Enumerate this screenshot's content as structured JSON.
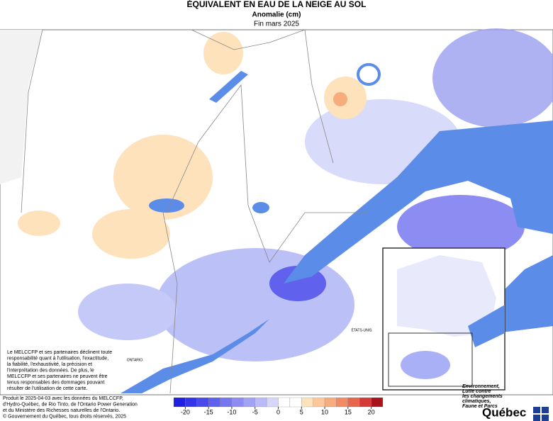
{
  "header": {
    "title": "ÉQUIVALENT EN EAU DE LA NEIGE AU SOL",
    "subtitle": "Anomalie (cm)",
    "period": "Fin mars 2025"
  },
  "map": {
    "labels": [
      "ONTARIO",
      "ÉTATS-UNIS"
    ]
  },
  "disclaimer": [
    "Le MELCCFP et ses partenaires déclinent toute",
    "responsabilité quant à l'utilisation, l'exactitude,",
    "la fiabilité, l'exhaustivité, la précision et",
    "l'interprétation des données. De plus, le",
    "MELCCFP et ses partenaires ne peuvent être",
    "tenus responsables des dommages pouvant",
    "résulter de l'utilisation de cette carte."
  ],
  "footer": [
    "Produit le 2025-04-03 avec les données du MELCCFP,",
    "d'Hydro-Québec, de Rio Tinto, de l'Ontario Power Generation",
    "et du Ministère des Richesses naturelles de l'Ontario.",
    "© Gouvernement du Québec, tous droits réservés, 2025"
  ],
  "legend": {
    "range": [
      -22.5,
      22.5
    ],
    "ticks": [
      -20,
      -15,
      -10,
      -5,
      0,
      5,
      10,
      15,
      20
    ],
    "colors": [
      "#1f1fe0",
      "#3434e8",
      "#4a4aeb",
      "#6060ee",
      "#7676f0",
      "#8c8cf2",
      "#a3a3f5",
      "#babaf8",
      "#d6d6fb",
      "#ffffff",
      "#ffffff",
      "#fde2bc",
      "#fcc89a",
      "#f7ac7e",
      "#f28a66",
      "#e8654e",
      "#d33a38",
      "#a8141c"
    ]
  },
  "logo": {
    "lines": [
      "Environnement,",
      "Lutte contre",
      "les changements",
      "climatiques,",
      "Faune et Parcs"
    ],
    "name": "Québec"
  }
}
